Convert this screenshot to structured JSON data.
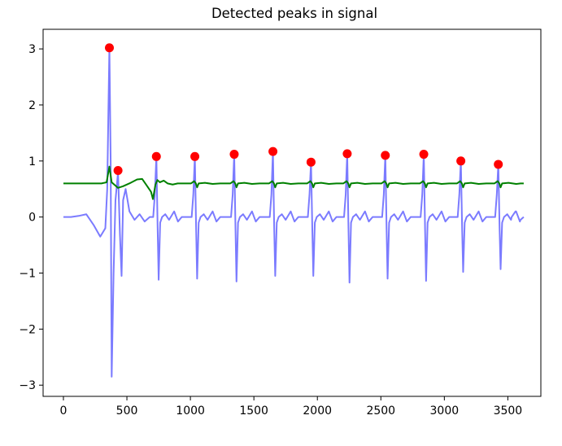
{
  "chart_data": {
    "type": "line",
    "title": "Detected peaks in signal",
    "xlabel": "",
    "ylabel": "",
    "xlim": [
      -160,
      3760
    ],
    "ylim": [
      -3.2,
      3.35
    ],
    "xticks": [
      0,
      500,
      1000,
      1500,
      2000,
      2500,
      3000,
      3500
    ],
    "yticks": [
      -3,
      -2,
      -1,
      0,
      1,
      2,
      3
    ],
    "xtick_labels": [
      "0",
      "500",
      "1000",
      "1500",
      "2000",
      "2500",
      "3000",
      "3500"
    ],
    "ytick_labels": [
      "−3",
      "−2",
      "−1",
      "0",
      "1",
      "2",
      "3"
    ],
    "grid": false,
    "legend": "none",
    "series": [
      {
        "kind": "signal",
        "color": "#7b7bff",
        "x_range": [
          0,
          3600
        ],
        "baseline_points": [
          [
            0,
            0.0
          ],
          [
            60,
            0.0
          ],
          [
            120,
            0.02
          ],
          [
            180,
            0.05
          ],
          [
            240,
            -0.15
          ],
          [
            290,
            -0.35
          ],
          [
            330,
            -0.2
          ],
          [
            345,
            0.5
          ],
          [
            355,
            2.0
          ],
          [
            362,
            3.02
          ],
          [
            372,
            1.0
          ],
          [
            380,
            -2.85
          ],
          [
            395,
            -1.0
          ],
          [
            410,
            0.3
          ],
          [
            430,
            0.8
          ],
          [
            445,
            -0.3
          ],
          [
            458,
            -1.05
          ],
          [
            470,
            0.3
          ],
          [
            490,
            0.5
          ],
          [
            520,
            0.1
          ],
          [
            560,
            -0.05
          ],
          [
            600,
            0.05
          ],
          [
            640,
            -0.08
          ],
          [
            680,
            0.0
          ]
        ],
        "beat_template": [
          [
            -25,
            0.0
          ],
          [
            -12,
            0.4
          ],
          [
            0,
            "peak"
          ],
          [
            10,
            -0.2
          ],
          [
            18,
            "trough"
          ],
          [
            30,
            -0.1
          ],
          [
            45,
            0.0
          ],
          [
            70,
            0.05
          ],
          [
            100,
            -0.05
          ],
          [
            140,
            0.1
          ],
          [
            170,
            -0.08
          ],
          [
            200,
            0.0
          ]
        ],
        "beats": [
          {
            "x": 732,
            "peak": 1.08,
            "trough": -1.12
          },
          {
            "x": 1035,
            "peak": 1.08,
            "trough": -1.1
          },
          {
            "x": 1345,
            "peak": 1.12,
            "trough": -1.15
          },
          {
            "x": 1650,
            "peak": 1.17,
            "trough": -1.05
          },
          {
            "x": 1950,
            "peak": 0.98,
            "trough": -1.05
          },
          {
            "x": 2235,
            "peak": 1.13,
            "trough": -1.17
          },
          {
            "x": 2535,
            "peak": 1.1,
            "trough": -1.1
          },
          {
            "x": 2838,
            "peak": 1.12,
            "trough": -1.14
          },
          {
            "x": 3130,
            "peak": 1.0,
            "trough": -0.98
          },
          {
            "x": 3425,
            "peak": 0.94,
            "trough": -0.93
          }
        ],
        "end_points": [
          [
            3530,
            0.0
          ],
          [
            3560,
            0.1
          ],
          [
            3600,
            -0.05
          ]
        ]
      },
      {
        "kind": "threshold",
        "color": "#008000",
        "points": [
          [
            0,
            0.6
          ],
          [
            300,
            0.6
          ],
          [
            340,
            0.62
          ],
          [
            362,
            0.9
          ],
          [
            380,
            0.62
          ],
          [
            400,
            0.58
          ],
          [
            430,
            0.52
          ],
          [
            470,
            0.55
          ],
          [
            520,
            0.6
          ],
          [
            580,
            0.67
          ],
          [
            620,
            0.68
          ],
          [
            660,
            0.55
          ],
          [
            690,
            0.45
          ],
          [
            705,
            0.32
          ],
          [
            715,
            0.45
          ],
          [
            725,
            0.58
          ],
          [
            740,
            0.66
          ],
          [
            760,
            0.62
          ],
          [
            790,
            0.65
          ],
          [
            820,
            0.6
          ],
          [
            860,
            0.58
          ],
          [
            900,
            0.6
          ]
        ],
        "beat_xs": [
          1035,
          1345,
          1650,
          1950,
          2235,
          2535,
          2838,
          3130,
          3425
        ],
        "end_x": 3600,
        "level": 0.6
      }
    ],
    "peaks": {
      "color": "#ff0000",
      "points": [
        [
          362,
          3.02
        ],
        [
          430,
          0.83
        ],
        [
          732,
          1.08
        ],
        [
          1035,
          1.08
        ],
        [
          1345,
          1.12
        ],
        [
          1650,
          1.17
        ],
        [
          1950,
          0.98
        ],
        [
          2235,
          1.13
        ],
        [
          2535,
          1.1
        ],
        [
          2838,
          1.12
        ],
        [
          3130,
          1.0
        ],
        [
          3425,
          0.94
        ]
      ]
    }
  }
}
